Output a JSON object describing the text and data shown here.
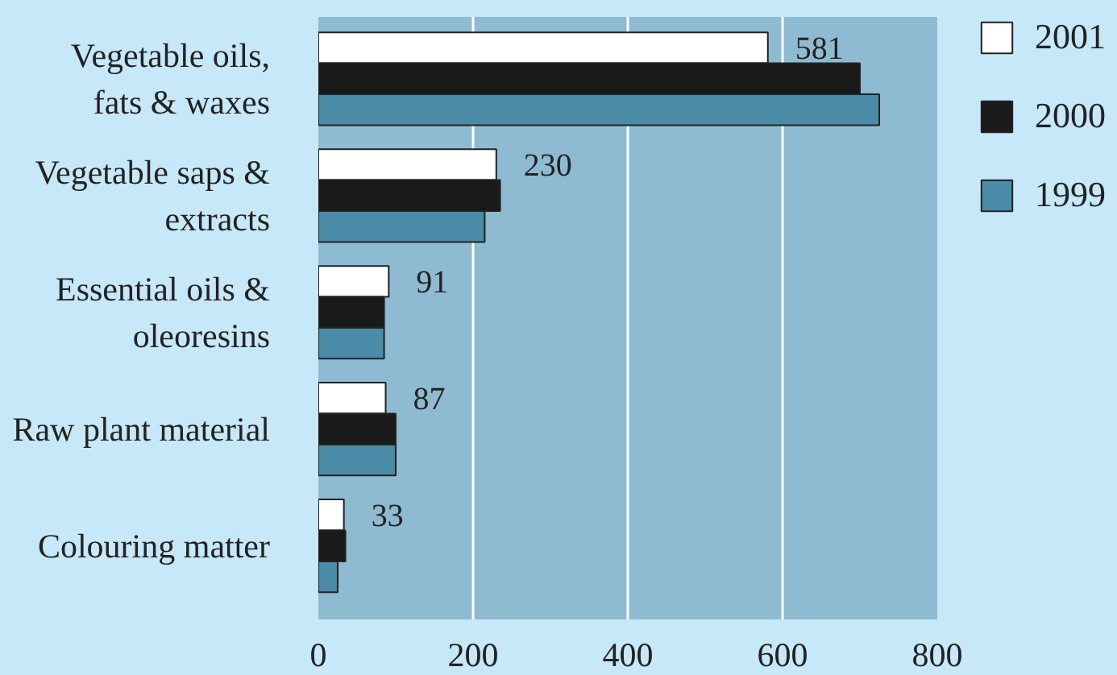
{
  "chart_data": {
    "type": "bar",
    "orientation": "horizontal",
    "categories": [
      "Vegetable oils,\nfats & waxes",
      "Vegetable saps &\nextracts",
      "Essential oils &\noleoresins",
      "Raw plant material",
      "Colouring matter"
    ],
    "series": [
      {
        "name": "2001",
        "color": "#ffffff",
        "values": [
          581,
          230,
          91,
          87,
          33
        ],
        "value_labels": [
          "581",
          "230",
          "91",
          "87",
          "33"
        ]
      },
      {
        "name": "2000",
        "color": "#1a1a1a",
        "values": [
          700,
          235,
          85,
          100,
          35
        ]
      },
      {
        "name": "1999",
        "color": "#4a8ba8",
        "values": [
          725,
          215,
          85,
          100,
          25
        ]
      }
    ],
    "xlim": [
      0,
      800
    ],
    "xticks": [
      0,
      200,
      400,
      600,
      800
    ],
    "grid": "x",
    "legend": "top right"
  }
}
